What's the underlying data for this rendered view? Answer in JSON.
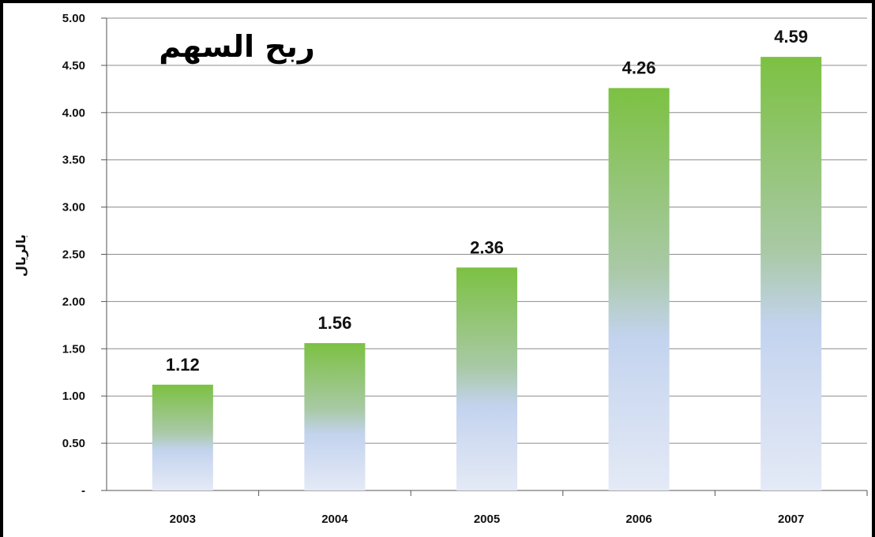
{
  "chart_data": {
    "type": "bar",
    "title": "ربح السهم",
    "ylabel": "بالريال",
    "xlabel": "",
    "categories": [
      "2003",
      "2004",
      "2005",
      "2006",
      "2007"
    ],
    "values": [
      1.12,
      1.56,
      2.36,
      4.26,
      4.59
    ],
    "data_labels": [
      "1.12",
      "1.56",
      "2.36",
      "4.26",
      "4.59"
    ],
    "ylim": [
      0,
      5
    ],
    "yticks": [
      0,
      0.5,
      1,
      1.5,
      2,
      2.5,
      3,
      3.5,
      4,
      4.5,
      5
    ],
    "ytick_labels": [
      "-",
      "0.50",
      "1.00",
      "1.50",
      "2.00",
      "2.50",
      "3.00",
      "3.50",
      "4.00",
      "4.50",
      "5.00"
    ],
    "grid": true,
    "legend": "none",
    "colors": {
      "bar_top": "#7cc142",
      "bar_mid": "#c3d3ee",
      "bar_bottom": "#e2e9f6",
      "grid": "#8c8c8c"
    }
  }
}
